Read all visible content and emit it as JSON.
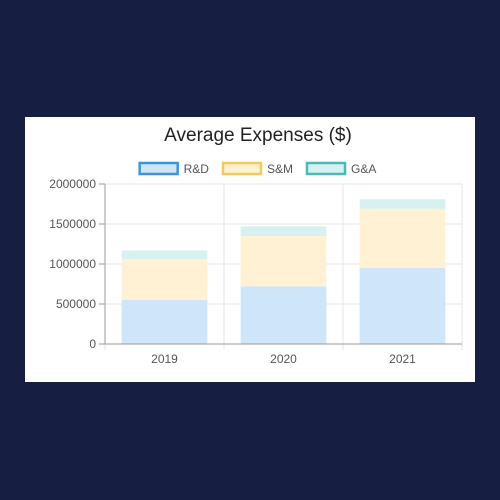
{
  "chart_data": {
    "type": "bar",
    "stacked": true,
    "title": "Average Expenses ($)",
    "categories": [
      "2019",
      "2020",
      "2021"
    ],
    "series": [
      {
        "name": "R&D",
        "values": [
          550000,
          720000,
          950000
        ],
        "fill": "#cfe5f9",
        "stroke": "#3a95e0"
      },
      {
        "name": "S&M",
        "values": [
          510000,
          630000,
          740000
        ],
        "fill": "#fff1d4",
        "stroke": "#f7c958"
      },
      {
        "name": "G&A",
        "values": [
          110000,
          120000,
          120000
        ],
        "fill": "#d7f1f1",
        "stroke": "#4cb8b8"
      }
    ],
    "ylim": [
      0,
      2000000
    ],
    "yticks": [
      0,
      500000,
      1000000,
      1500000,
      2000000
    ],
    "grid": true,
    "legend": "top"
  },
  "colors": {
    "background": "#161e42",
    "card": "#ffffff",
    "grid": "#e6e6e6",
    "axis": "#999999"
  }
}
